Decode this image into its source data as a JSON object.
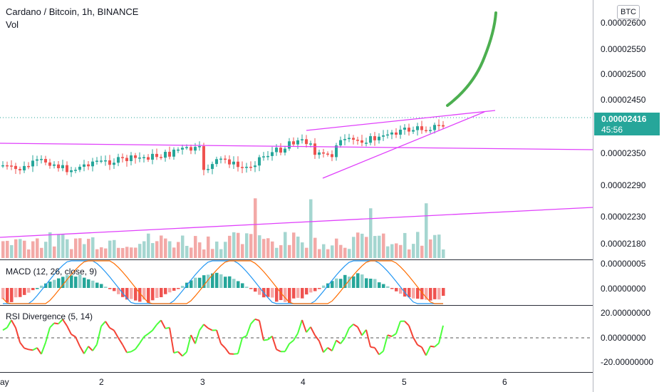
{
  "header": {
    "title": "Cardano / Bitcoin, 1h, BINANCE",
    "vol_label": "Vol",
    "macd_label": "MACD (12, 26, close, 9)",
    "rsi_label": "RSI Divergence (5, 14)",
    "currency_badge": "BTC"
  },
  "current_price": {
    "value": "0.00002416",
    "countdown": "45:56"
  },
  "colors": {
    "up": "#26a69a",
    "down": "#ef5350",
    "up_light": "#a5d6d0",
    "down_light": "#f3a9a7",
    "trendline": "#e040fb",
    "arrow": "#4caf50",
    "macd_line": "#2196f3",
    "signal_line": "#ff6d00",
    "rsi_up": "#4cff3c",
    "rsi_down": "#f44336"
  },
  "chart_data": {
    "type": "candlestick",
    "price_axis": {
      "ticks": [
        "0.00002600",
        "0.00002550",
        "0.00002500",
        "0.00002450",
        "0.00002350",
        "0.00002290",
        "0.00002230",
        "0.00002180"
      ],
      "ylim": [
        2.155e-05,
        2.63e-05
      ]
    },
    "macd_axis": {
      "ticks": [
        "0.00000005",
        "0.00000000"
      ]
    },
    "rsi_axis": {
      "ticks": [
        "20.00000000",
        "0.00000000",
        "-20.00000000"
      ],
      "ylim": [
        -30,
        27
      ]
    },
    "x_axis": {
      "ticks": [
        "ay",
        "2",
        "3",
        "4",
        "5",
        "6"
      ]
    }
  }
}
